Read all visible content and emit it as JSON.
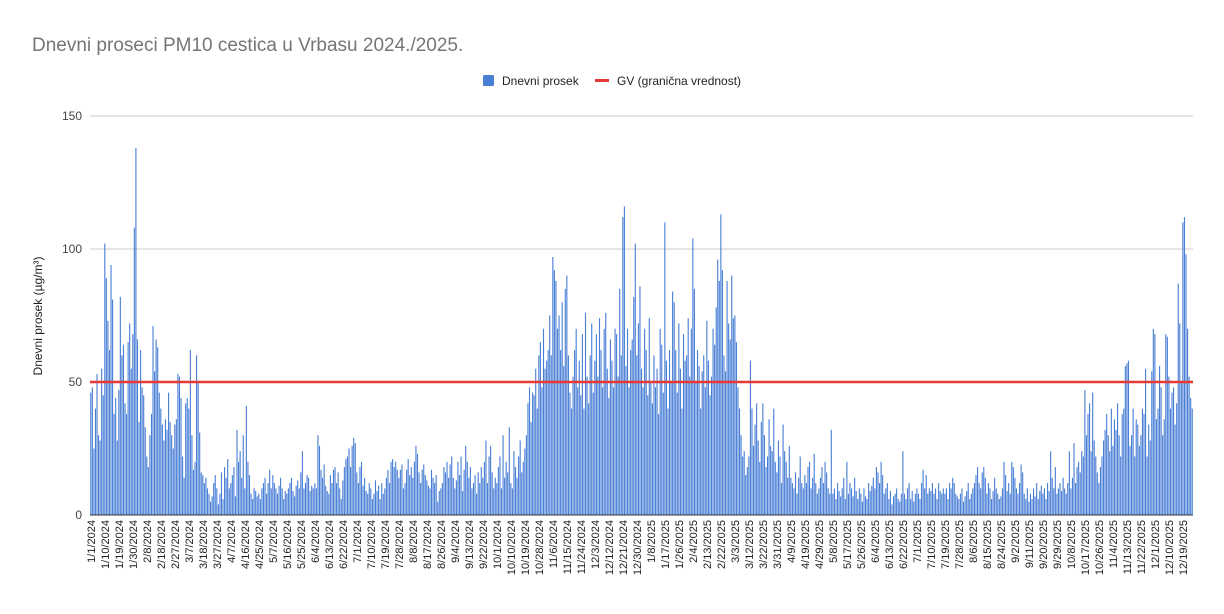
{
  "chart_data": {
    "type": "bar",
    "title": "Dnevni proseci PM10 cestica u Vrbasu 2024./2025.",
    "xlabel": "",
    "ylabel": "Dnevni prosek (µg/m³)",
    "ylim": [
      0,
      150
    ],
    "yticks": [
      "0",
      "50",
      "100",
      "150"
    ],
    "grid": true,
    "legend_placement": "top-center",
    "legend": [
      "Dnevni prosek",
      "GV (granična vrednost)"
    ],
    "series_color": "#4a7fd6",
    "limit_color": "#e53935",
    "limit_value": 50,
    "tick_every": 9,
    "tick_labels": [
      "1/1/2024",
      "1/10/2024",
      "1/19/2024",
      "1/30/2024",
      "2/8/2024",
      "2/18/2024",
      "2/27/2024",
      "3/7/2024",
      "3/18/2024",
      "3/27/2024",
      "4/7/2024",
      "4/16/2024",
      "4/25/2024",
      "5/7/2024",
      "5/16/2024",
      "5/25/2024",
      "6/4/2024",
      "6/13/2024",
      "6/22/2024",
      "7/1/2024",
      "7/10/2024",
      "7/19/2024",
      "7/28/2024",
      "8/8/2024",
      "8/17/2024",
      "8/26/2024",
      "9/4/2024",
      "9/13/2024",
      "9/22/2024",
      "10/1/2024",
      "10/10/2024",
      "10/19/2024",
      "10/28/2024",
      "11/6/2024",
      "11/15/2024",
      "11/24/2024",
      "12/3/2024",
      "12/12/2024",
      "12/21/2024",
      "12/30/2024",
      "1/8/2025",
      "1/17/2025",
      "1/26/2025",
      "2/4/2025",
      "2/13/2025",
      "2/22/2025",
      "3/3/2025",
      "3/12/2025",
      "3/22/2025",
      "3/31/2025",
      "4/9/2025",
      "4/19/2025",
      "4/29/2025",
      "5/8/2025",
      "5/17/2025",
      "5/26/2025",
      "6/4/2025",
      "6/13/2025",
      "6/22/2025",
      "7/1/2025",
      "7/10/2025",
      "7/19/2025",
      "7/28/2025",
      "8/6/2025",
      "8/15/2025",
      "8/24/2025",
      "9/2/2025",
      "9/11/2025",
      "9/20/2025",
      "9/29/2025",
      "10/8/2025",
      "10/17/2025",
      "10/26/2025",
      "11/4/2025",
      "11/13/2025",
      "11/22/2025",
      "12/1/2025",
      "12/10/2025",
      "12/19/2025"
    ],
    "values": [
      46,
      48,
      25,
      40,
      53,
      30,
      28,
      55,
      45,
      102,
      89,
      73,
      62,
      94,
      81,
      38,
      44,
      28,
      47,
      82,
      60,
      64,
      42,
      38,
      65,
      72,
      55,
      68,
      108,
      138,
      66,
      35,
      62,
      48,
      45,
      33,
      22,
      18,
      30,
      38,
      71,
      54,
      66,
      63,
      46,
      40,
      34,
      28,
      36,
      32,
      46,
      35,
      30,
      25,
      34,
      36,
      53,
      52,
      44,
      22,
      14,
      42,
      44,
      40,
      62,
      30,
      17,
      20,
      60,
      50,
      31,
      16,
      15,
      12,
      14,
      10,
      8,
      5,
      7,
      12,
      15,
      10,
      4,
      8,
      16,
      6,
      18,
      14,
      21,
      10,
      12,
      15,
      18,
      7,
      32,
      20,
      24,
      14,
      30,
      10,
      41,
      20,
      15,
      8,
      6,
      10,
      9,
      7,
      8,
      6,
      10,
      12,
      14,
      8,
      12,
      17,
      10,
      15,
      12,
      10,
      8,
      11,
      14,
      10,
      6,
      9,
      8,
      10,
      12,
      14,
      9,
      7,
      11,
      13,
      10,
      16,
      24,
      10,
      12,
      15,
      14,
      9,
      11,
      10,
      12,
      10,
      30,
      26,
      17,
      14,
      19,
      11,
      9,
      8,
      15,
      12,
      17,
      18,
      12,
      16,
      10,
      6,
      13,
      18,
      21,
      22,
      25,
      18,
      26,
      29,
      27,
      16,
      12,
      18,
      20,
      11,
      14,
      9,
      8,
      12,
      10,
      6,
      8,
      13,
      9,
      11,
      6,
      12,
      8,
      10,
      14,
      17,
      12,
      20,
      21,
      18,
      20,
      17,
      14,
      17,
      19,
      10,
      12,
      17,
      21,
      15,
      18,
      14,
      20,
      26,
      23,
      16,
      12,
      17,
      19,
      15,
      13,
      11,
      10,
      17,
      14,
      12,
      15,
      5,
      9,
      10,
      12,
      18,
      16,
      20,
      14,
      19,
      22,
      14,
      10,
      13,
      20,
      15,
      22,
      9,
      17,
      26,
      20,
      14,
      18,
      10,
      12,
      15,
      8,
      16,
      12,
      18,
      14,
      20,
      28,
      12,
      22,
      26,
      16,
      10,
      14,
      12,
      18,
      22,
      10,
      30,
      14,
      20,
      16,
      33,
      12,
      10,
      24,
      18,
      14,
      22,
      28,
      16,
      20,
      25,
      30,
      42,
      48,
      35,
      46,
      45,
      55,
      40,
      60,
      65,
      48,
      70,
      55,
      58,
      62,
      75,
      60,
      97,
      92,
      88,
      70,
      75,
      62,
      80,
      56,
      85,
      90,
      60,
      46,
      40,
      52,
      62,
      70,
      48,
      58,
      45,
      68,
      40,
      76,
      52,
      42,
      60,
      72,
      46,
      58,
      68,
      52,
      74,
      62,
      48,
      70,
      76,
      55,
      44,
      66,
      58,
      48,
      70,
      68,
      52,
      85,
      60,
      112,
      116,
      56,
      70,
      48,
      62,
      66,
      82,
      102,
      60,
      72,
      86,
      55,
      48,
      70,
      62,
      45,
      74,
      50,
      42,
      60,
      48,
      55,
      38,
      70,
      64,
      46,
      110,
      58,
      40,
      62,
      50,
      84,
      80,
      62,
      46,
      72,
      55,
      40,
      68,
      58,
      60,
      74,
      52,
      70,
      104,
      85,
      50,
      62,
      56,
      40,
      54,
      60,
      48,
      73,
      58,
      45,
      52,
      70,
      64,
      78,
      96,
      88,
      113,
      92,
      60,
      54,
      88,
      72,
      66,
      90,
      74,
      75,
      65,
      48,
      40,
      30,
      22,
      24,
      15,
      18,
      22,
      58,
      40,
      26,
      34,
      42,
      28,
      20,
      35,
      42,
      30,
      18,
      22,
      36,
      26,
      24,
      40,
      20,
      16,
      28,
      22,
      12,
      34,
      24,
      20,
      14,
      26,
      14,
      12,
      10,
      16,
      8,
      14,
      22,
      12,
      10,
      15,
      12,
      18,
      20,
      10,
      14,
      23,
      12,
      8,
      10,
      14,
      18,
      12,
      20,
      16,
      10,
      8,
      32,
      8,
      10,
      6,
      12,
      9,
      7,
      10,
      14,
      6,
      20,
      8,
      12,
      10,
      7,
      14,
      9,
      6,
      10,
      8,
      5,
      10,
      7,
      6,
      12,
      9,
      11,
      14,
      10,
      18,
      16,
      12,
      20,
      15,
      8,
      10,
      12,
      6,
      9,
      4,
      7,
      8,
      10,
      6,
      5,
      8,
      24,
      8,
      6,
      10,
      12,
      6,
      9,
      5,
      8,
      10,
      8,
      6,
      12,
      17,
      10,
      15,
      8,
      10,
      9,
      12,
      8,
      10,
      6,
      12,
      9,
      8,
      10,
      8,
      10,
      6,
      12,
      10,
      14,
      12,
      8,
      7,
      6,
      8,
      10,
      5,
      7,
      9,
      12,
      6,
      8,
      10,
      12,
      15,
      18,
      12,
      10,
      16,
      18,
      14,
      8,
      12,
      10,
      6,
      9,
      14,
      10,
      8,
      6,
      7,
      10,
      20,
      15,
      9,
      12,
      8,
      20,
      18,
      14,
      10,
      8,
      12,
      19,
      16,
      8,
      6,
      10,
      5,
      8,
      6,
      10,
      7,
      12,
      6,
      9,
      11,
      8,
      10,
      6,
      12,
      9,
      24,
      14,
      10,
      18,
      8,
      10,
      12,
      9,
      14,
      10,
      8,
      12,
      24,
      10,
      14,
      27,
      12,
      18,
      20,
      16,
      24,
      22,
      47,
      30,
      38,
      42,
      24,
      46,
      28,
      22,
      16,
      12,
      18,
      22,
      28,
      32,
      38,
      30,
      24,
      40,
      26,
      36,
      32,
      42,
      30,
      22,
      38,
      40,
      56,
      57,
      58,
      26,
      30,
      40,
      22,
      36,
      34,
      26,
      30,
      40,
      38,
      55,
      22,
      34,
      28,
      54,
      70,
      68,
      36,
      40,
      56,
      48,
      30,
      36,
      68,
      67,
      52,
      40,
      46,
      48,
      34,
      42,
      87,
      72,
      50,
      110,
      112,
      98,
      70,
      52,
      44,
      40
    ]
  }
}
